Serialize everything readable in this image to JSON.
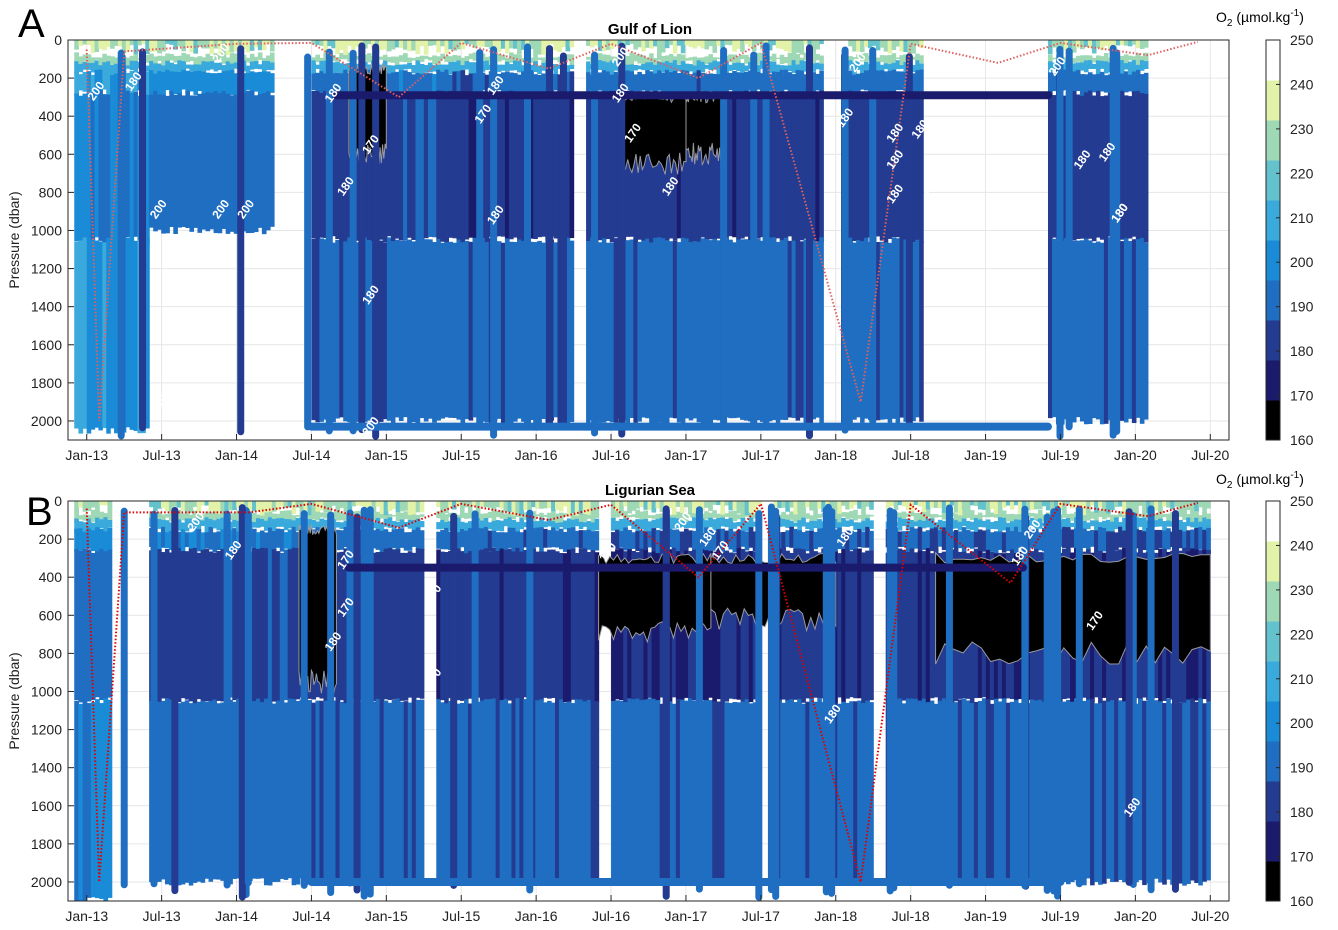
{
  "chart_data": [
    {
      "panel": "A",
      "type": "heatmap",
      "title": "Gulf of Lion",
      "ylabel": "Pressure (dbar)",
      "xlabel": "",
      "x_tick_labels": [
        "Jan-13",
        "Jul-13",
        "Jan-14",
        "Jul-14",
        "Jan-15",
        "Jul-15",
        "Jan-16",
        "Jul-16",
        "Jan-17",
        "Jul-17",
        "Jan-18",
        "Jul-18",
        "Jan-19",
        "Jul-19",
        "Jan-20",
        "Jul-20"
      ],
      "y_tick_labels": [
        "0",
        "200",
        "400",
        "600",
        "800",
        "1000",
        "1200",
        "1400",
        "1600",
        "1800",
        "2000"
      ],
      "ylim": [
        2100,
        0
      ],
      "y_reversed": true,
      "grid": true,
      "colorbar": {
        "label": "O2 (µmol.kg-1)",
        "ticks": [
          "160",
          "170",
          "180",
          "190",
          "200",
          "210",
          "220",
          "230",
          "240",
          "250"
        ],
        "range": [
          160,
          250
        ],
        "colors": [
          "#000000",
          "#1b1b6e",
          "#233b90",
          "#1f6ec2",
          "#1a8bd6",
          "#3aa9dc",
          "#64c2cc",
          "#9fd8b5",
          "#e2f2a8",
          "#ffffff"
        ]
      },
      "contour_levels": [
        170,
        180,
        200
      ],
      "contour_labels": [
        {
          "text": "200",
          "date": "2013-02",
          "p": 280
        },
        {
          "text": "180",
          "date": "2013-05",
          "p": 230
        },
        {
          "text": "200",
          "date": "2013-07",
          "p": 900
        },
        {
          "text": "200",
          "date": "2013-12",
          "p": 80
        },
        {
          "text": "200",
          "date": "2013-12",
          "p": 900
        },
        {
          "text": "200",
          "date": "2014-02",
          "p": 900
        },
        {
          "text": "200",
          "date": "2013-07",
          "p": 1920
        },
        {
          "text": "180",
          "date": "2014-09",
          "p": 290
        },
        {
          "text": "170",
          "date": "2014-12",
          "p": 560
        },
        {
          "text": "180",
          "date": "2014-10",
          "p": 780
        },
        {
          "text": "180",
          "date": "2014-12",
          "p": 1350
        },
        {
          "text": "180",
          "date": "2015-10",
          "p": 250
        },
        {
          "text": "170",
          "date": "2015-09",
          "p": 400
        },
        {
          "text": "180",
          "date": "2015-10",
          "p": 930
        },
        {
          "text": "200",
          "date": "2014-12",
          "p": 2040
        },
        {
          "text": "200",
          "date": "2016-08",
          "p": 100
        },
        {
          "text": "180",
          "date": "2016-08",
          "p": 290
        },
        {
          "text": "170",
          "date": "2016-09",
          "p": 500
        },
        {
          "text": "180",
          "date": "2016-12",
          "p": 780
        },
        {
          "text": "200",
          "date": "2018-03",
          "p": 130
        },
        {
          "text": "180",
          "date": "2018-02",
          "p": 420
        },
        {
          "text": "180",
          "date": "2018-06",
          "p": 500
        },
        {
          "text": "180",
          "date": "2018-08",
          "p": 480
        },
        {
          "text": "180",
          "date": "2018-06",
          "p": 640
        },
        {
          "text": "180",
          "date": "2018-06",
          "p": 820
        },
        {
          "text": "180",
          "date": "2018-09",
          "p": 790
        },
        {
          "text": "200",
          "date": "2019-07",
          "p": 150
        },
        {
          "text": "180",
          "date": "2019-09",
          "p": 640
        },
        {
          "text": "180",
          "date": "2019-11",
          "p": 600
        },
        {
          "text": "180",
          "date": "2019-12",
          "p": 920
        },
        {
          "text": "180",
          "date": "2019-12",
          "p": 920
        }
      ],
      "profile_blocks": [
        {
          "start": "2012-12",
          "end": "2013-01",
          "top": 80,
          "bottom": 2050,
          "o2": 205
        },
        {
          "start": "2013-01",
          "end": "2013-06",
          "top": 80,
          "bottom": 2050,
          "o2": 200
        },
        {
          "start": "2013-06",
          "end": "2014-04",
          "top": 80,
          "bottom": 1000,
          "o2": 195
        },
        {
          "start": "2014-07",
          "end": "2015-02",
          "top": 80,
          "bottom": 2000,
          "o2": 185
        },
        {
          "start": "2015-02",
          "end": "2015-05",
          "top": 80,
          "bottom": 2000,
          "o2": 190
        },
        {
          "start": "2015-05",
          "end": "2016-04",
          "top": 80,
          "bottom": 2000,
          "o2": 182
        },
        {
          "start": "2016-05",
          "end": "2016-11",
          "top": 80,
          "bottom": 2000,
          "o2": 184
        },
        {
          "start": "2016-11",
          "end": "2017-12",
          "top": 80,
          "bottom": 2000,
          "o2": 183
        },
        {
          "start": "2018-02",
          "end": "2018-08",
          "top": 80,
          "bottom": 2000,
          "o2": 185
        },
        {
          "start": "2019-06",
          "end": "2020-02",
          "top": 80,
          "bottom": 2000,
          "o2": 183
        }
      ],
      "low_oxygen_zones": [
        {
          "start": "2014-10",
          "end": "2015-01",
          "top": 150,
          "bottom": 600,
          "o2": 165
        },
        {
          "start": "2016-08",
          "end": "2017-01",
          "top": 300,
          "bottom": 650,
          "o2": 167
        },
        {
          "start": "2017-01",
          "end": "2017-04",
          "top": 300,
          "bottom": 600,
          "o2": 168
        }
      ],
      "ship_profiles_o2": 192,
      "mld_series": [
        {
          "date": "2013-01",
          "p": 50
        },
        {
          "date": "2013-02",
          "p": 2000
        },
        {
          "date": "2013-04",
          "p": 60
        },
        {
          "date": "2014-01",
          "p": 20
        },
        {
          "date": "2014-07",
          "p": 15
        },
        {
          "date": "2015-02",
          "p": 300
        },
        {
          "date": "2015-07",
          "p": 15
        },
        {
          "date": "2016-02",
          "p": 150
        },
        {
          "date": "2016-07",
          "p": 20
        },
        {
          "date": "2017-02",
          "p": 200
        },
        {
          "date": "2017-07",
          "p": 15
        },
        {
          "date": "2018-03",
          "p": 1900
        },
        {
          "date": "2018-07",
          "p": 20
        },
        {
          "date": "2019-02",
          "p": 120
        },
        {
          "date": "2019-07",
          "p": 15
        },
        {
          "date": "2020-02",
          "p": 80
        },
        {
          "date": "2020-06",
          "p": 10
        }
      ]
    },
    {
      "panel": "B",
      "type": "heatmap",
      "title": "Ligurian Sea",
      "ylabel": "Pressure (dbar)",
      "xlabel": "",
      "x_tick_labels": [
        "Jan-13",
        "Jul-13",
        "Jan-14",
        "Jul-14",
        "Jan-15",
        "Jul-15",
        "Jan-16",
        "Jul-16",
        "Jan-17",
        "Jul-17",
        "Jan-18",
        "Jul-18",
        "Jan-19",
        "Jul-19",
        "Jan-20",
        "Jul-20"
      ],
      "y_tick_labels": [
        "0",
        "200",
        "400",
        "600",
        "800",
        "1000",
        "1200",
        "1400",
        "1600",
        "1800",
        "2000"
      ],
      "ylim": [
        2100,
        0
      ],
      "y_reversed": true,
      "grid": true,
      "colorbar": {
        "label": "O2 (µmol.kg-1)",
        "ticks": [
          "160",
          "170",
          "180",
          "190",
          "200",
          "210",
          "220",
          "230",
          "240",
          "250"
        ],
        "range": [
          160,
          250
        ],
        "colors": [
          "#000000",
          "#1b1b6e",
          "#233b90",
          "#1f6ec2",
          "#1a8bd6",
          "#3aa9dc",
          "#64c2cc",
          "#9fd8b5",
          "#e2f2a8",
          "#ffffff"
        ]
      },
      "contour_levels": [
        170,
        180,
        200
      ],
      "contour_labels": [
        {
          "text": "200",
          "date": "2013-10",
          "p": 120
        },
        {
          "text": "180",
          "date": "2014-01",
          "p": 270
        },
        {
          "text": "170",
          "date": "2014-10",
          "p": 320
        },
        {
          "text": "170",
          "date": "2014-10",
          "p": 570
        },
        {
          "text": "180",
          "date": "2014-09",
          "p": 750
        },
        {
          "text": "170",
          "date": "2015-05",
          "p": 500
        },
        {
          "text": "170",
          "date": "2015-05",
          "p": 940
        },
        {
          "text": "170",
          "date": "2016-07",
          "p": 280
        },
        {
          "text": "200",
          "date": "2017-01",
          "p": 120
        },
        {
          "text": "180",
          "date": "2017-03",
          "p": 200
        },
        {
          "text": "170",
          "date": "2017-04",
          "p": 270
        },
        {
          "text": "180",
          "date": "2018-02",
          "p": 200
        },
        {
          "text": "200",
          "date": "2019-05",
          "p": 160
        },
        {
          "text": "180",
          "date": "2019-04",
          "p": 300
        },
        {
          "text": "170",
          "date": "2019-10",
          "p": 640
        },
        {
          "text": "180",
          "date": "2018-01",
          "p": 1130
        },
        {
          "text": "180",
          "date": "2020-01",
          "p": 1620
        }
      ],
      "profile_blocks": [
        {
          "start": "2012-12",
          "end": "2013-03",
          "top": 60,
          "bottom": 2100,
          "o2": 195
        },
        {
          "start": "2013-06",
          "end": "2014-07",
          "top": 60,
          "bottom": 2000,
          "o2": 188
        },
        {
          "start": "2014-07",
          "end": "2015-04",
          "top": 60,
          "bottom": 2000,
          "o2": 185
        },
        {
          "start": "2015-05",
          "end": "2016-06",
          "top": 60,
          "bottom": 2000,
          "o2": 183
        },
        {
          "start": "2016-07",
          "end": "2017-07",
          "top": 60,
          "bottom": 2000,
          "o2": 180
        },
        {
          "start": "2017-08",
          "end": "2018-04",
          "top": 60,
          "bottom": 2000,
          "o2": 182
        },
        {
          "start": "2018-05",
          "end": "2020-07",
          "top": 60,
          "bottom": 2000,
          "o2": 180
        }
      ],
      "low_oxygen_zones": [
        {
          "start": "2014-06",
          "end": "2014-09",
          "top": 150,
          "bottom": 950,
          "o2": 165
        },
        {
          "start": "2016-06",
          "end": "2017-03",
          "top": 300,
          "bottom": 680,
          "o2": 163
        },
        {
          "start": "2017-03",
          "end": "2018-01",
          "top": 300,
          "bottom": 620,
          "o2": 165
        },
        {
          "start": "2018-09",
          "end": "2020-07",
          "top": 300,
          "bottom": 800,
          "o2": 162
        }
      ],
      "ship_profiles_o2": 192,
      "mld_series": [
        {
          "date": "2013-01",
          "p": 40
        },
        {
          "date": "2013-02",
          "p": 2000
        },
        {
          "date": "2013-04",
          "p": 60
        },
        {
          "date": "2014-02",
          "p": 60
        },
        {
          "date": "2014-07",
          "p": 15
        },
        {
          "date": "2015-02",
          "p": 140
        },
        {
          "date": "2015-07",
          "p": 15
        },
        {
          "date": "2016-02",
          "p": 100
        },
        {
          "date": "2016-07",
          "p": 20
        },
        {
          "date": "2017-02",
          "p": 400
        },
        {
          "date": "2017-07",
          "p": 15
        },
        {
          "date": "2018-03",
          "p": 2000
        },
        {
          "date": "2018-07",
          "p": 20
        },
        {
          "date": "2019-03",
          "p": 430
        },
        {
          "date": "2019-07",
          "p": 15
        },
        {
          "date": "2020-02",
          "p": 80
        },
        {
          "date": "2020-06",
          "p": 10
        }
      ]
    }
  ],
  "panels": {
    "a": {
      "letter": "A",
      "title": "Gulf of Lion",
      "ylabel": "Pressure (dbar)"
    },
    "b": {
      "letter": "B",
      "title": "Ligurian Sea",
      "ylabel": "Pressure (dbar)"
    }
  },
  "colorbar_label": {
    "main": "O",
    "sub": "2",
    "units": " (µmol.kg",
    "exp": "-1",
    "close": ")"
  },
  "colors": {
    "mld_line": "#e06060",
    "mld_line_b": "#e00000",
    "grid": "#e6e6e6",
    "axis": "#262626",
    "contour_line": "#9a9aa0"
  }
}
